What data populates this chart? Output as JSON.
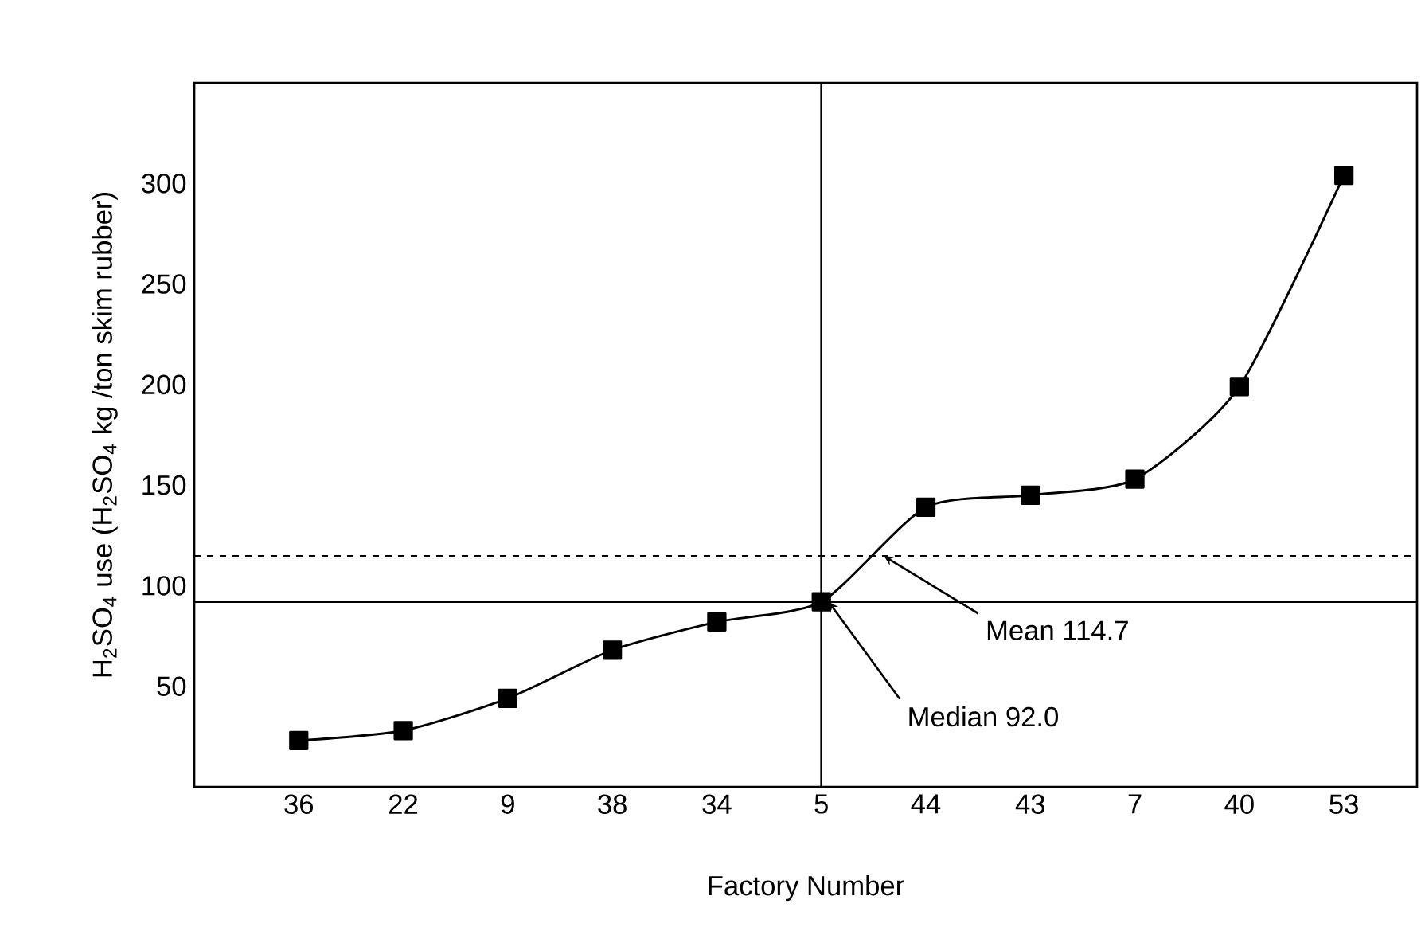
{
  "chart_data": {
    "type": "line",
    "xlabel": "Factory Number",
    "ylabel": "H$_{2}$SO$_{4}$ use (H$_{2}$SO$_{4}$ kg /ton skim rubber)",
    "categories": [
      "36",
      "22",
      "9",
      "38",
      "34",
      "5",
      "44",
      "43",
      "7",
      "40",
      "53"
    ],
    "values": [
      23,
      28,
      44,
      68,
      82,
      92,
      139,
      145,
      153,
      199,
      304
    ],
    "color": "#000000",
    "marker": "square",
    "line_style": "solid",
    "ylim": [
      0,
      350
    ],
    "yticks": [
      50,
      100,
      150,
      200,
      250,
      300
    ],
    "grid": false,
    "ref_lines": [
      {
        "axis": "y",
        "value": 92.0,
        "label": "Median 92.0",
        "color": "#000000",
        "line_style": "solid"
      },
      {
        "axis": "y",
        "value": 114.7,
        "label": "Mean 114.7",
        "color": "#000000",
        "line_style": "dashed"
      },
      {
        "axis": "x",
        "value": "5",
        "color": "#000000",
        "line_style": "solid"
      }
    ]
  }
}
